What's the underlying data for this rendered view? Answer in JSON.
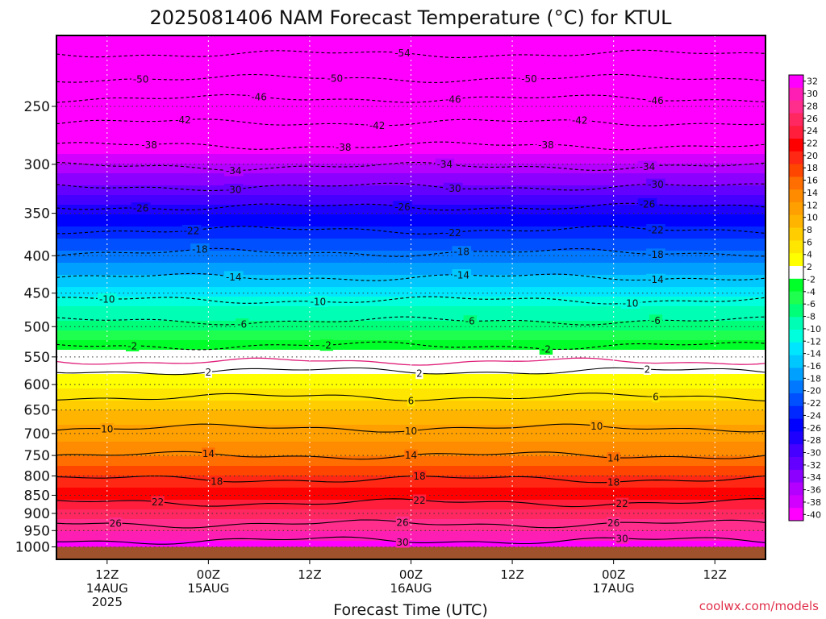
{
  "chart_data": {
    "type": "heatmap",
    "title": "2025081406 NAM Forecast Temperature (°C) for KTUL",
    "xlabel": "Forecast Time (UTC)",
    "ylabel": "",
    "credit": "coolwx.com/models",
    "y_axis": {
      "scale": "log",
      "inverted": true,
      "ticks": [
        250,
        300,
        350,
        400,
        450,
        500,
        550,
        600,
        650,
        700,
        750,
        800,
        850,
        900,
        950,
        1000
      ],
      "range": [
        200,
        1040
      ]
    },
    "x_axis": {
      "range_hours": [
        0,
        84
      ],
      "ticks": [
        {
          "hour": 6,
          "label": [
            "12Z",
            "14AUG",
            "2025"
          ]
        },
        {
          "hour": 18,
          "label": [
            "00Z",
            "15AUG"
          ]
        },
        {
          "hour": 30,
          "label": [
            "12Z"
          ]
        },
        {
          "hour": 42,
          "label": [
            "00Z",
            "16AUG"
          ]
        },
        {
          "hour": 54,
          "label": [
            "12Z"
          ]
        },
        {
          "hour": 66,
          "label": [
            "00Z",
            "17AUG"
          ]
        },
        {
          "hour": 78,
          "label": [
            "12Z"
          ]
        }
      ]
    },
    "colorbar_labels": [
      "32",
      "30",
      "28",
      "26",
      "24",
      "22",
      "20",
      "18",
      "16",
      "14",
      "12",
      "10",
      "8",
      "6",
      "4",
      "2",
      "-2",
      "-4",
      "-6",
      "-8",
      "-10",
      "-12",
      "-14",
      "-16",
      "-18",
      "-20",
      "-22",
      "-24",
      "-26",
      "-28",
      "-30",
      "-32",
      "-34",
      "-36",
      "-38",
      "-40"
    ],
    "colorbar_colors": [
      "#ff00ff",
      "#ff1eb4",
      "#ff2d8c",
      "#ff2860",
      "#ff1e3c",
      "#ff0000",
      "#ff2814",
      "#ff4600",
      "#ff6e00",
      "#ff8c00",
      "#ffa000",
      "#ffb400",
      "#ffcd00",
      "#ffe600",
      "#ffff00",
      "#ffffff",
      "#00ff28",
      "#1eff50",
      "#00ff78",
      "#00ffb4",
      "#00ffdc",
      "#00e6ff",
      "#00c8ff",
      "#00a0ff",
      "#0078ff",
      "#0050ff",
      "#0028ff",
      "#0000ff",
      "#1e00ff",
      "#4600ff",
      "#6400ff",
      "#8c00ff",
      "#b400ff",
      "#d200ff",
      "#ff00ff"
    ],
    "levels_mean_temp_c": [
      {
        "p": 200,
        "t": -56
      },
      {
        "p": 220,
        "t": -52
      },
      {
        "p": 250,
        "t": -46
      },
      {
        "p": 270,
        "t": -42
      },
      {
        "p": 300,
        "t": -36
      },
      {
        "p": 330,
        "t": -30
      },
      {
        "p": 350,
        "t": -26
      },
      {
        "p": 380,
        "t": -22
      },
      {
        "p": 410,
        "t": -18
      },
      {
        "p": 440,
        "t": -14
      },
      {
        "p": 470,
        "t": -10
      },
      {
        "p": 500,
        "t": -7
      },
      {
        "p": 530,
        "t": -3
      },
      {
        "p": 560,
        "t": 1
      },
      {
        "p": 600,
        "t": 3
      },
      {
        "p": 650,
        "t": 8
      },
      {
        "p": 700,
        "t": 11
      },
      {
        "p": 750,
        "t": 14
      },
      {
        "p": 800,
        "t": 18
      },
      {
        "p": 850,
        "t": 21
      },
      {
        "p": 900,
        "t": 25
      },
      {
        "p": 950,
        "t": 28
      },
      {
        "p": 1000,
        "t": 31
      }
    ],
    "isotherms": [
      {
        "t": -54,
        "p": 212,
        "labels": [
          {
            "hour": 41
          }
        ]
      },
      {
        "t": -50,
        "p": 229,
        "labels": [
          {
            "hour": 10
          },
          {
            "hour": 33
          },
          {
            "hour": 56
          }
        ]
      },
      {
        "t": -46,
        "p": 244,
        "labels": [
          {
            "hour": 24
          },
          {
            "hour": 47
          },
          {
            "hour": 71
          }
        ]
      },
      {
        "t": -42,
        "p": 263,
        "labels": [
          {
            "hour": 15
          },
          {
            "hour": 38
          },
          {
            "hour": 62
          }
        ]
      },
      {
        "t": -38,
        "p": 283,
        "labels": [
          {
            "hour": 11
          },
          {
            "hour": 34
          },
          {
            "hour": 58
          }
        ]
      },
      {
        "t": -34,
        "p": 302,
        "labels": [
          {
            "hour": 21
          },
          {
            "hour": 46
          },
          {
            "hour": 70
          }
        ]
      },
      {
        "t": -30,
        "p": 322,
        "labels": [
          {
            "hour": 21
          },
          {
            "hour": 47
          },
          {
            "hour": 71
          }
        ]
      },
      {
        "t": -26,
        "p": 343,
        "labels": [
          {
            "hour": 10
          },
          {
            "hour": 41
          },
          {
            "hour": 70
          }
        ]
      },
      {
        "t": -22,
        "p": 369,
        "labels": [
          {
            "hour": 16
          },
          {
            "hour": 47
          },
          {
            "hour": 71
          }
        ]
      },
      {
        "t": -18,
        "p": 396,
        "labels": [
          {
            "hour": 17
          },
          {
            "hour": 48
          },
          {
            "hour": 71
          }
        ]
      },
      {
        "t": -14,
        "p": 428,
        "labels": [
          {
            "hour": 21
          },
          {
            "hour": 48
          },
          {
            "hour": 71
          }
        ]
      },
      {
        "t": -10,
        "p": 460,
        "labels": [
          {
            "hour": 6
          },
          {
            "hour": 31
          },
          {
            "hour": 68
          }
        ]
      },
      {
        "t": -6,
        "p": 491,
        "labels": [
          {
            "hour": 22
          },
          {
            "hour": 49
          },
          {
            "hour": 71
          }
        ]
      },
      {
        "t": -2,
        "p": 531,
        "labels": [
          {
            "hour": 9
          },
          {
            "hour": 32
          },
          {
            "hour": 58
          }
        ]
      },
      {
        "t": 2,
        "p": 575,
        "labels": [
          {
            "hour": 18
          },
          {
            "hour": 43
          },
          {
            "hour": 70
          }
        ]
      },
      {
        "t": 6,
        "p": 624,
        "labels": [
          {
            "hour": 42
          },
          {
            "hour": 71
          }
        ]
      },
      {
        "t": 10,
        "p": 688,
        "labels": [
          {
            "hour": 6
          },
          {
            "hour": 42
          },
          {
            "hour": 64
          }
        ]
      },
      {
        "t": 14,
        "p": 750,
        "labels": [
          {
            "hour": 18
          },
          {
            "hour": 42
          },
          {
            "hour": 66
          }
        ]
      },
      {
        "t": 18,
        "p": 808,
        "labels": [
          {
            "hour": 19
          },
          {
            "hour": 43
          },
          {
            "hour": 66
          }
        ]
      },
      {
        "t": 22,
        "p": 870,
        "labels": [
          {
            "hour": 12
          },
          {
            "hour": 43
          },
          {
            "hour": 67
          }
        ]
      },
      {
        "t": 26,
        "p": 930,
        "labels": [
          {
            "hour": 7
          },
          {
            "hour": 41
          },
          {
            "hour": 66
          }
        ]
      },
      {
        "t": 30,
        "p": 980,
        "labels": [
          {
            "hour": 41
          },
          {
            "hour": 67
          }
        ]
      }
    ],
    "freezing_line": {
      "t": 0,
      "p": 558
    },
    "surface": {
      "p": 1000,
      "color": "#a0522d"
    },
    "grid": "dotted"
  }
}
